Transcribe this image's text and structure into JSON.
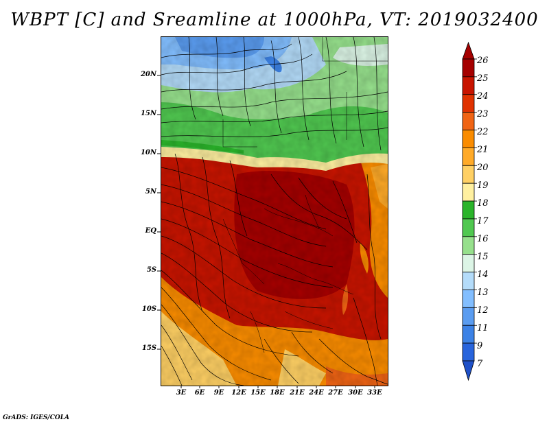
{
  "title": "WBPT [C] and Sreamline at 1000hPa, VT: 2019032400",
  "credit": "GrADS: IGES/COLA",
  "map": {
    "latitude_labels": [
      "20N",
      "15N",
      "10N",
      "5N",
      "EQ",
      "5S",
      "10S",
      "15S"
    ],
    "longitude_labels": [
      "3E",
      "6E",
      "9E",
      "12E",
      "15E",
      "18E",
      "21E",
      "24E",
      "27E",
      "30E",
      "33E"
    ]
  },
  "colorbar": {
    "labels": [
      "26",
      "25",
      "24",
      "23",
      "22",
      "21",
      "20",
      "19",
      "18",
      "17",
      "16",
      "15",
      "14",
      "13",
      "12",
      "11",
      "9",
      "7"
    ],
    "colors": [
      "#a50000",
      "#c81400",
      "#e03200",
      "#f06414",
      "#fa8c00",
      "#ffaa28",
      "#ffd064",
      "#fff0a0",
      "#2ab42a",
      "#50c850",
      "#96e08c",
      "#dcf5e6",
      "#b4dcfa",
      "#82beff",
      "#5a9cf0",
      "#3c82e6",
      "#2864dc"
    ]
  }
}
